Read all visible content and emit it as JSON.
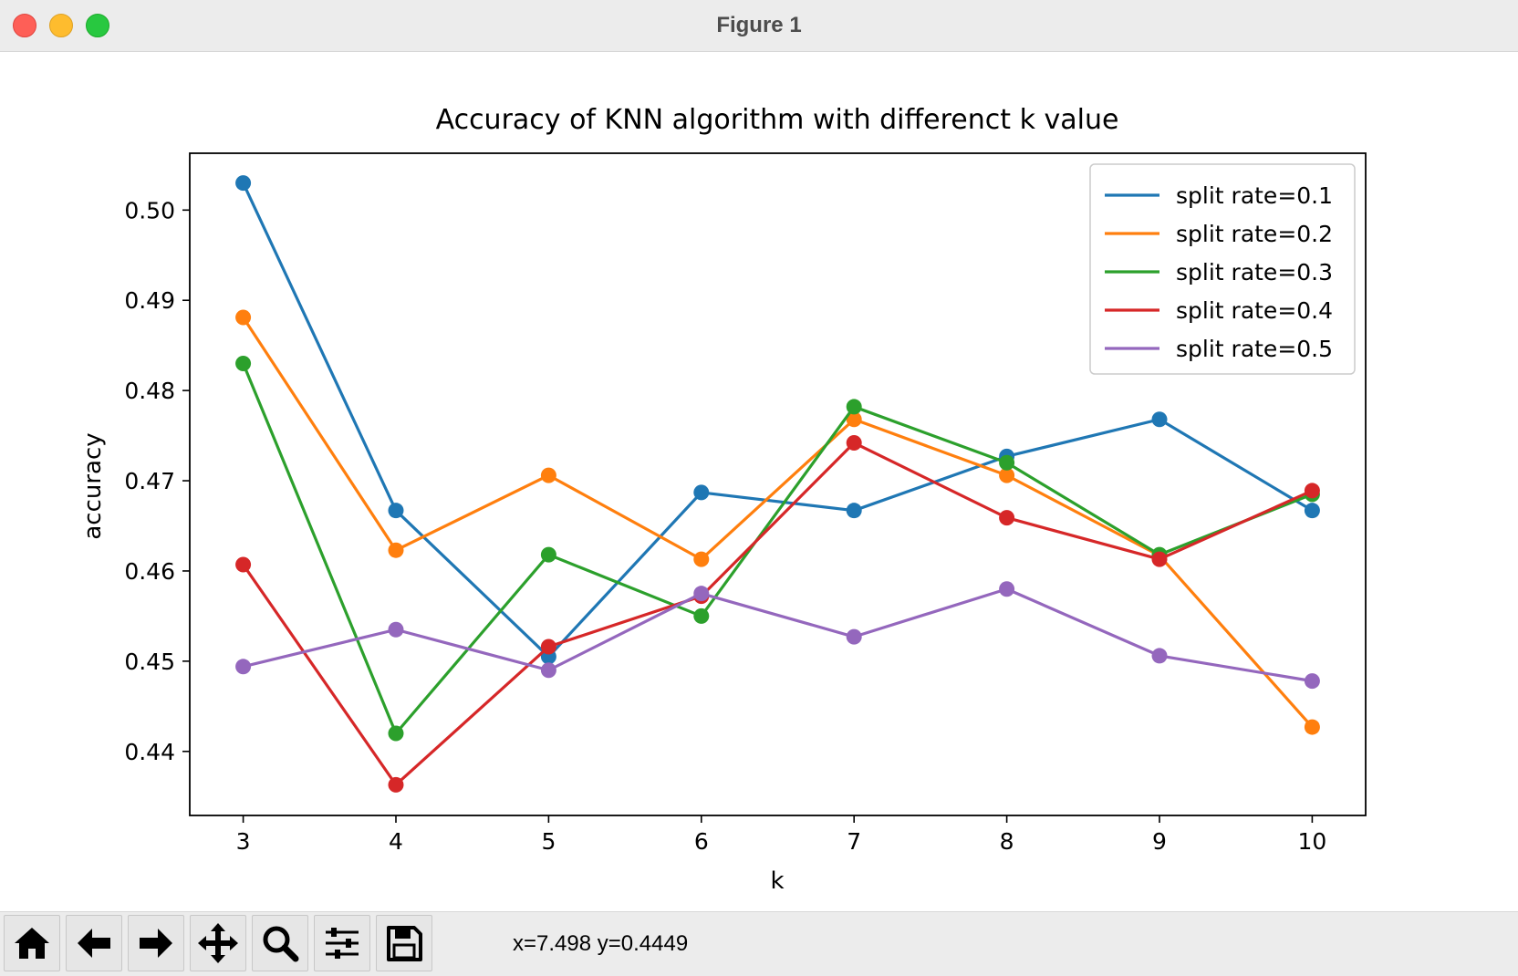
{
  "window": {
    "title": "Figure 1"
  },
  "toolbar": {
    "buttons": [
      {
        "name": "home-button",
        "icon": "home-icon"
      },
      {
        "name": "back-button",
        "icon": "arrow-left-icon"
      },
      {
        "name": "forward-button",
        "icon": "arrow-right-icon"
      },
      {
        "name": "pan-button",
        "icon": "move-icon"
      },
      {
        "name": "zoom-button",
        "icon": "magnifier-icon"
      },
      {
        "name": "configure-subplots-button",
        "icon": "sliders-icon"
      },
      {
        "name": "save-button",
        "icon": "floppy-disk-icon"
      }
    ],
    "coordinates": "x=7.498 y=0.4449"
  },
  "chart_data": {
    "type": "line",
    "title": "Accuracy of KNN algorithm with differenct k value",
    "xlabel": "k",
    "ylabel": "accuracy",
    "x": [
      3,
      4,
      5,
      6,
      7,
      8,
      9,
      10
    ],
    "xticks": [
      "3",
      "4",
      "5",
      "6",
      "7",
      "8",
      "9",
      "10"
    ],
    "yticks": [
      "0.44",
      "0.45",
      "0.46",
      "0.47",
      "0.48",
      "0.49",
      "0.50"
    ],
    "xlim": [
      2.65,
      10.35
    ],
    "ylim": [
      0.4329,
      0.5063
    ],
    "legend_position": "top-right",
    "grid": false,
    "markers": true,
    "series": [
      {
        "name": "split rate=0.1",
        "color": "#1f77b4",
        "values": [
          0.503,
          0.4667,
          0.4505,
          0.4687,
          0.4667,
          0.4727,
          0.4768,
          0.4667
        ]
      },
      {
        "name": "split rate=0.2",
        "color": "#ff7f0e",
        "values": [
          0.4881,
          0.4623,
          0.4706,
          0.4613,
          0.4768,
          0.4706,
          0.4617,
          0.4427
        ]
      },
      {
        "name": "split rate=0.3",
        "color": "#2ca02c",
        "values": [
          0.483,
          0.442,
          0.4618,
          0.455,
          0.4782,
          0.472,
          0.4618,
          0.4685
        ]
      },
      {
        "name": "split rate=0.4",
        "color": "#d62728",
        "values": [
          0.4607,
          0.4363,
          0.4516,
          0.4572,
          0.4742,
          0.4659,
          0.4613,
          0.4689
        ]
      },
      {
        "name": "split rate=0.5",
        "color": "#9467bd",
        "values": [
          0.4494,
          0.4535,
          0.449,
          0.4575,
          0.4527,
          0.458,
          0.4506,
          0.4478
        ]
      }
    ]
  }
}
